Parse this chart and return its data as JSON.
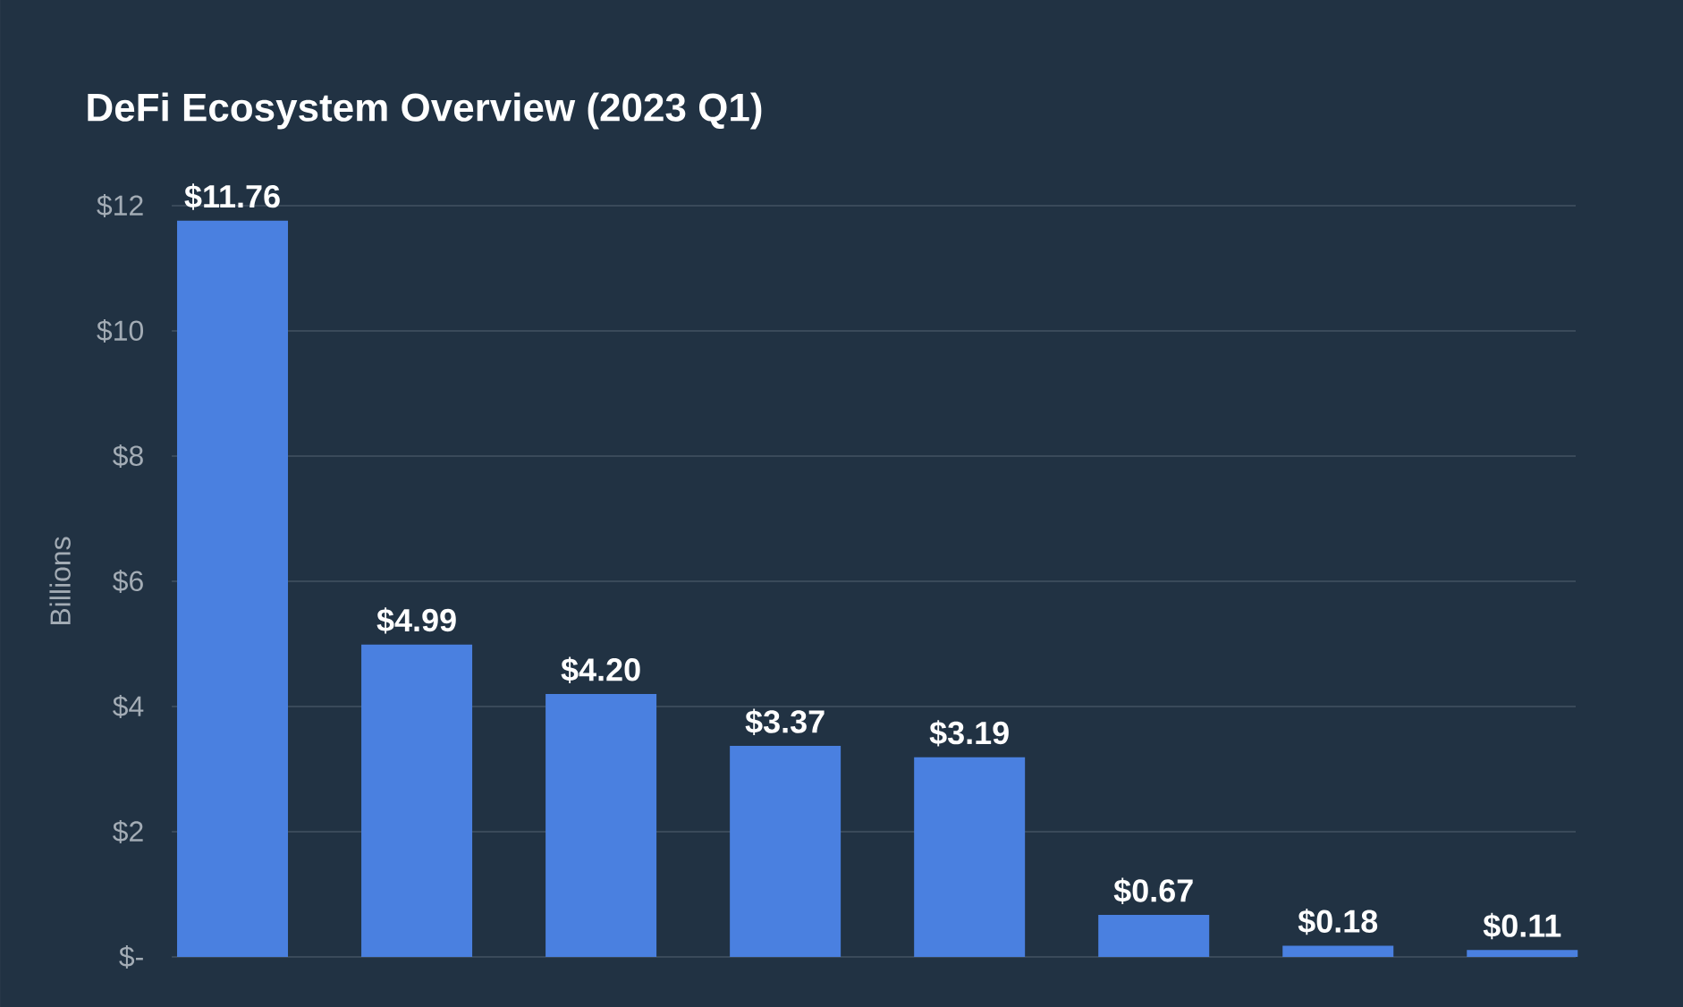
{
  "chart_data": {
    "type": "bar",
    "title": "DeFi Ecosystem Overview (2023 Q1)",
    "ylabel": "Billions",
    "categories": [
      null,
      null,
      null,
      null,
      null,
      null,
      null,
      null
    ],
    "values": [
      11.76,
      4.99,
      4.2,
      3.37,
      3.19,
      0.67,
      0.18,
      0.11
    ],
    "value_labels": [
      "$11.76",
      "$4.99",
      "$4.20",
      "$3.37",
      "$3.19",
      "$0.67",
      "$0.18",
      "$0.11"
    ],
    "color": "#4a80e0",
    "ylim": [
      0,
      12
    ],
    "yticks": [
      {
        "value": 0,
        "label": "$-"
      },
      {
        "value": 2,
        "label": "$2"
      },
      {
        "value": 4,
        "label": "$4"
      },
      {
        "value": 6,
        "label": "$6"
      },
      {
        "value": 8,
        "label": "$8"
      },
      {
        "value": 10,
        "label": "$10"
      },
      {
        "value": 12,
        "label": "$12"
      }
    ],
    "grid": "y"
  }
}
